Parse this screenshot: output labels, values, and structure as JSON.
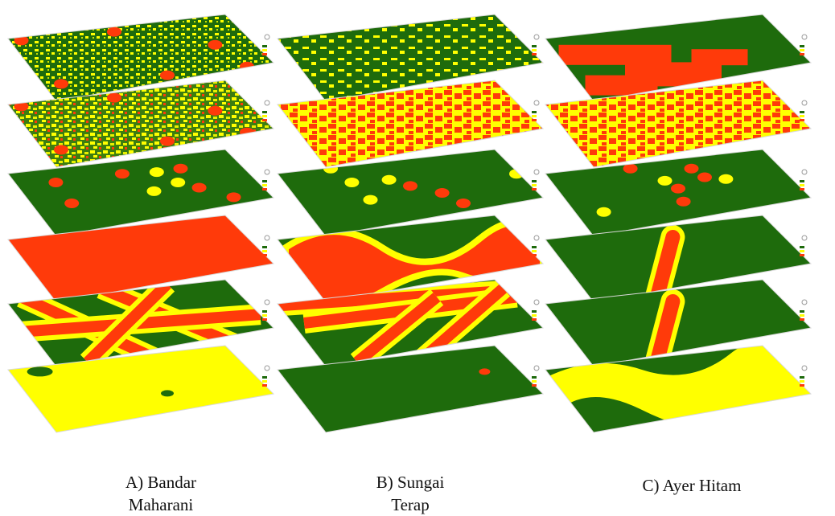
{
  "colors": {
    "green": "#1e6b0c",
    "yellow": "#ffff00",
    "red": "#ff3a0a",
    "light_green": "#5ab31d"
  },
  "columns": [
    {
      "caption_line1": "A) Bandar",
      "caption_line2": "Maharani"
    },
    {
      "caption_line1": "B) Sungai",
      "caption_line2": "Terap"
    },
    {
      "caption_line1": "C) Ayer Hitam",
      "caption_line2": ""
    }
  ],
  "layers_per_column": 6
}
